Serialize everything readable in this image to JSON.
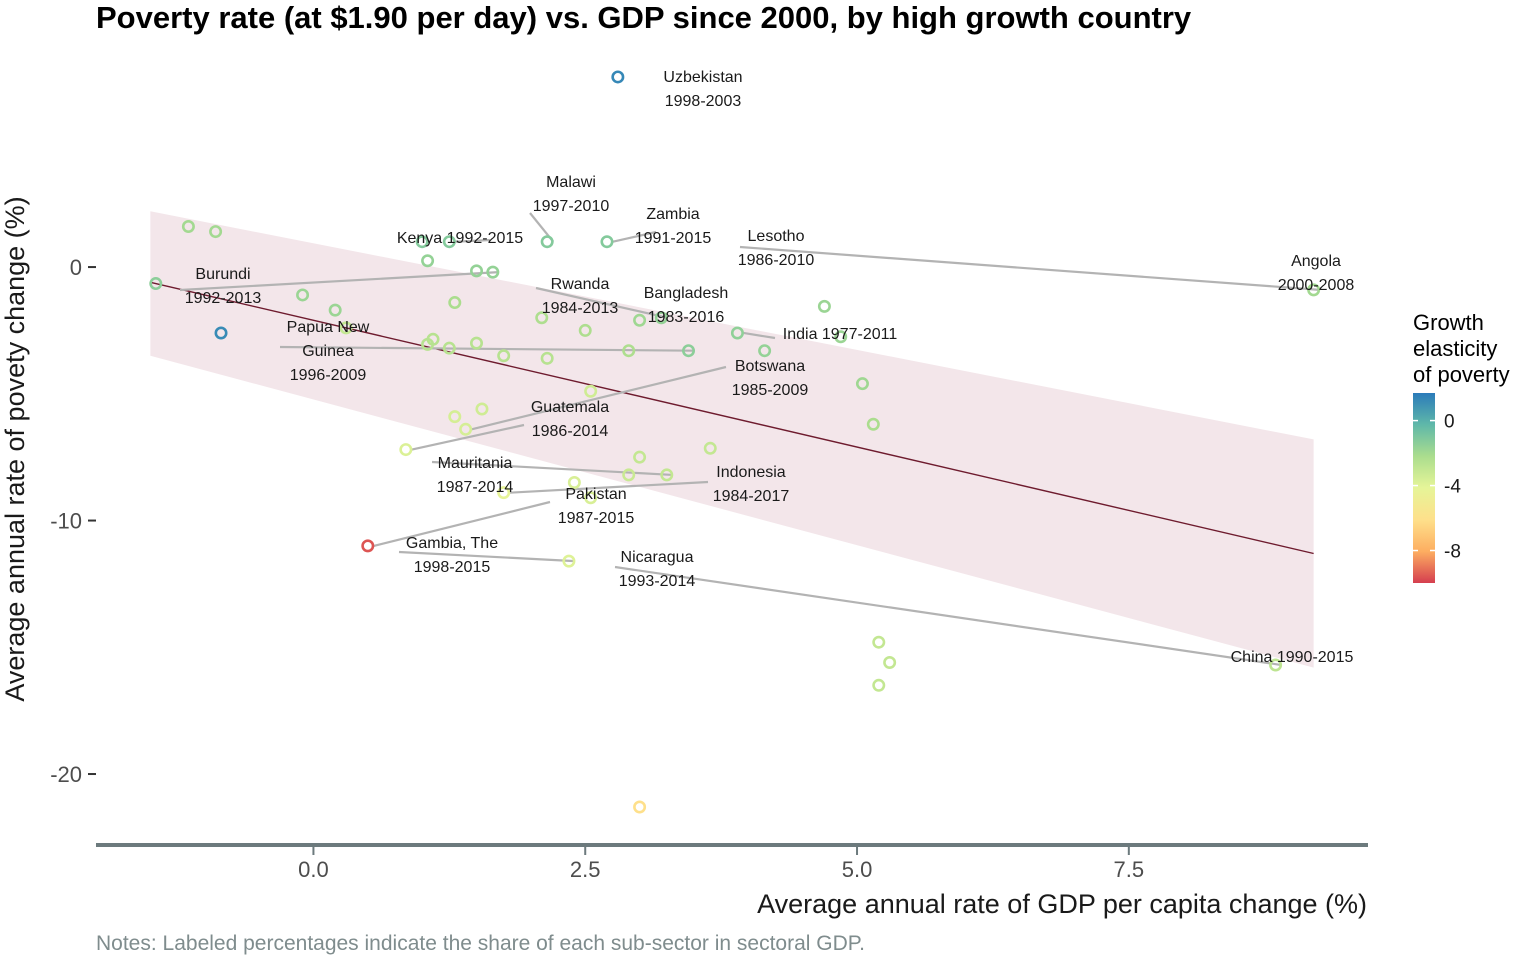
{
  "chart_data": {
    "type": "scatter",
    "title": "Poverty rate (at $1.90 per day) vs. GDP since 2000, by high growth country",
    "xlabel": "Average annual rate of GDP per capita change (%)",
    "ylabel": "Average annual rate of povety change (%)",
    "note": "Notes: Labeled percentages indicate the share of each sub-sector in sectoral GDP.",
    "xlim": [
      -2.0,
      9.7
    ],
    "ylim": [
      -22.8,
      8.8
    ],
    "x_ticks": [
      0.0,
      2.5,
      5.0,
      7.5
    ],
    "x_tick_labels": [
      "0.0",
      "2.5",
      "5.0",
      "7.5"
    ],
    "y_ticks": [
      0,
      -10,
      -20
    ],
    "y_tick_labels": [
      "0",
      "-10",
      "-20"
    ],
    "grid": false,
    "trend_line": {
      "x": [
        -1.5,
        9.2
      ],
      "y": [
        -0.6,
        -11.3
      ]
    },
    "confidence_band": {
      "x": [
        -1.5,
        9.2
      ],
      "upper": [
        2.2,
        -6.8
      ],
      "lower": [
        -3.5,
        -15.8
      ]
    },
    "legend": {
      "title": "Growth elasticity of poverty",
      "title_lines": [
        "Growth",
        "elasticity",
        "of poverty"
      ],
      "position": "right",
      "range": [
        -10.0,
        1.7
      ],
      "ticks": [
        0,
        -4,
        -8
      ],
      "tick_labels": [
        "0",
        "-4",
        "-8"
      ],
      "colors": [
        "#2b7bba",
        "#5fb8a9",
        "#abdd8e",
        "#e6f598",
        "#fee08b",
        "#fdae61",
        "#d53e4f"
      ]
    },
    "points": [
      {
        "x": 2.8,
        "y": 7.5,
        "elasticity": 1.3,
        "label_lines": [
          "Uzbekistan",
          "1998-2003"
        ]
      },
      {
        "x": 1.25,
        "y": 1.0,
        "elasticity": -1.2,
        "label_lines": [
          "Kenya 1992-2015"
        ]
      },
      {
        "x": 2.15,
        "y": 1.0,
        "elasticity": -1.2,
        "label_lines": [
          "Malawi",
          "1997-2010"
        ]
      },
      {
        "x": 2.7,
        "y": 1.0,
        "elasticity": -1.2,
        "label_lines": [
          "Zambia",
          "1991-2015"
        ]
      },
      {
        "x": 9.2,
        "y": -0.9,
        "elasticity": -2.0,
        "label_lines": [
          "Lesotho",
          "1986-2010"
        ]
      },
      {
        "x": -1.45,
        "y": -0.65,
        "elasticity": -1.4,
        "label_lines": [
          "Angola",
          "2000-2008"
        ]
      },
      {
        "x": 1.65,
        "y": -0.2,
        "elasticity": -1.6,
        "label_lines": [
          "Burundi",
          "1992-2013"
        ]
      },
      {
        "x": 3.2,
        "y": -2.0,
        "elasticity": -1.6,
        "label_lines": [
          "Rwanda",
          "1984-2013"
        ]
      },
      {
        "x": -0.85,
        "y": -2.6,
        "elasticity": 1.2,
        "label_lines": [
          "Bangladesh",
          "1983-2016"
        ]
      },
      {
        "x": 3.9,
        "y": -2.6,
        "elasticity": -1.5,
        "label_lines": [
          "India 1977-2011"
        ]
      },
      {
        "x": 3.45,
        "y": -3.3,
        "elasticity": -1.4,
        "label_lines": [
          "Papua New",
          "Guinea",
          "1996-2009"
        ]
      },
      {
        "x": 1.4,
        "y": -6.4,
        "elasticity": -3.6,
        "label_lines": [
          "Botswana",
          "1985-2009"
        ]
      },
      {
        "x": 0.85,
        "y": -7.2,
        "elasticity": -3.8,
        "label_lines": [
          "Guatemala",
          "1986-2014"
        ]
      },
      {
        "x": 3.25,
        "y": -8.2,
        "elasticity": -3.0,
        "label_lines": [
          "Mauritania",
          "1987-2014"
        ]
      },
      {
        "x": 1.75,
        "y": -8.9,
        "elasticity": -4.2,
        "label_lines": [
          "Indonesia",
          "1984-2017"
        ]
      },
      {
        "x": 0.5,
        "y": -11.0,
        "elasticity": -9.6,
        "label_lines": [
          "Pakistan",
          "1987-2015"
        ]
      },
      {
        "x": 2.35,
        "y": -11.6,
        "elasticity": -3.9,
        "label_lines": [
          "Gambia, The",
          "1998-2015"
        ]
      },
      {
        "x": 8.85,
        "y": -15.7,
        "elasticity": -2.8,
        "label_lines": [
          "Nicaragua",
          "1993-2014"
        ]
      },
      {
        "x": 3.0,
        "y": -21.3,
        "elasticity": -6.1,
        "label_lines": [
          "China 1990-2015"
        ]
      },
      {
        "x": -1.15,
        "y": 1.6,
        "elasticity": -2.0
      },
      {
        "x": -0.9,
        "y": 1.4,
        "elasticity": -2.0
      },
      {
        "x": 1.0,
        "y": 1.0,
        "elasticity": -1.2
      },
      {
        "x": 1.05,
        "y": 0.25,
        "elasticity": -1.6
      },
      {
        "x": 1.5,
        "y": -0.15,
        "elasticity": -1.6
      },
      {
        "x": -0.1,
        "y": -1.1,
        "elasticity": -1.8
      },
      {
        "x": 0.2,
        "y": -1.7,
        "elasticity": -1.8
      },
      {
        "x": 1.3,
        "y": -1.4,
        "elasticity": -2.2
      },
      {
        "x": 0.3,
        "y": -2.4,
        "elasticity": -3.0
      },
      {
        "x": 1.1,
        "y": -2.85,
        "elasticity": -2.6
      },
      {
        "x": 1.05,
        "y": -3.05,
        "elasticity": -2.6
      },
      {
        "x": 1.25,
        "y": -3.2,
        "elasticity": -2.6
      },
      {
        "x": 1.5,
        "y": -3.0,
        "elasticity": -2.6
      },
      {
        "x": 1.75,
        "y": -3.5,
        "elasticity": -2.6
      },
      {
        "x": 2.1,
        "y": -2.0,
        "elasticity": -2.3
      },
      {
        "x": 2.5,
        "y": -2.5,
        "elasticity": -2.3
      },
      {
        "x": 2.15,
        "y": -3.6,
        "elasticity": -2.6
      },
      {
        "x": 3.0,
        "y": -2.1,
        "elasticity": -1.9
      },
      {
        "x": 2.9,
        "y": -3.3,
        "elasticity": -2.3
      },
      {
        "x": 4.7,
        "y": -1.55,
        "elasticity": -1.8
      },
      {
        "x": 4.85,
        "y": -2.75,
        "elasticity": -1.8
      },
      {
        "x": 4.15,
        "y": -3.3,
        "elasticity": -1.6
      },
      {
        "x": 5.05,
        "y": -4.6,
        "elasticity": -1.9
      },
      {
        "x": 5.15,
        "y": -6.2,
        "elasticity": -2.2
      },
      {
        "x": 2.55,
        "y": -4.9,
        "elasticity": -3.4
      },
      {
        "x": 1.55,
        "y": -5.6,
        "elasticity": -3.4
      },
      {
        "x": 1.3,
        "y": -5.9,
        "elasticity": -3.6
      },
      {
        "x": 3.65,
        "y": -7.15,
        "elasticity": -3.0
      },
      {
        "x": 3.0,
        "y": -7.5,
        "elasticity": -3.0
      },
      {
        "x": 2.9,
        "y": -8.2,
        "elasticity": -3.2
      },
      {
        "x": 2.4,
        "y": -8.5,
        "elasticity": -3.7
      },
      {
        "x": 2.55,
        "y": -9.1,
        "elasticity": -3.7
      },
      {
        "x": 5.2,
        "y": -14.8,
        "elasticity": -3.0
      },
      {
        "x": 5.3,
        "y": -15.6,
        "elasticity": -3.0
      },
      {
        "x": 5.2,
        "y": -16.5,
        "elasticity": -3.0
      }
    ],
    "label_positions_note": "labels placed next to their points"
  }
}
